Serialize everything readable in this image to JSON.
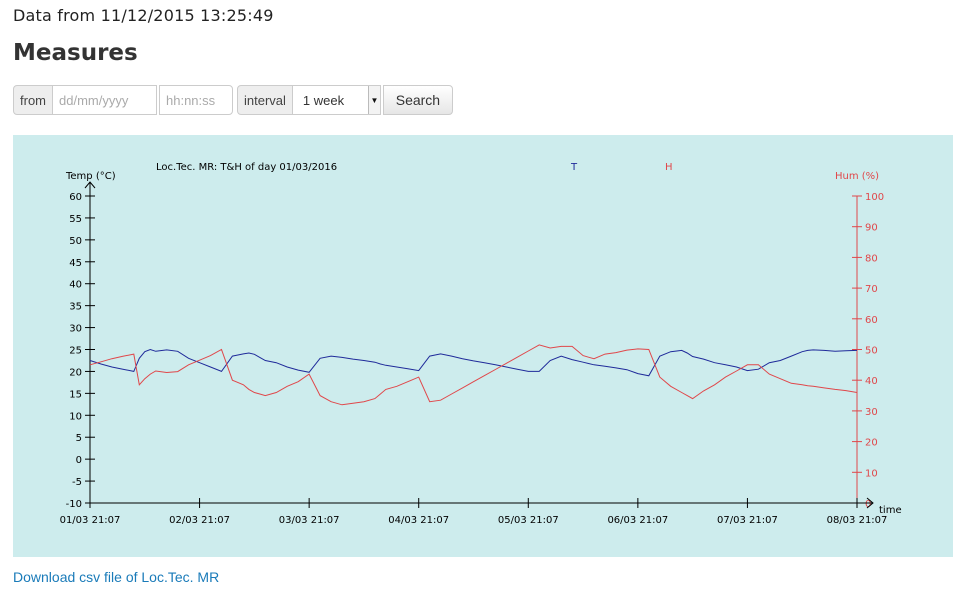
{
  "header": {
    "data_line": "Data from 11/12/2015 13:25:49"
  },
  "page_title": "Measures",
  "search_form": {
    "from_label": "from",
    "date_placeholder": "dd/mm/yyyy",
    "time_placeholder": "hh:nn:ss",
    "interval_label": "interval",
    "interval_value": "1 week",
    "search_button": "Search",
    "select_arrow_icon": "triangle-down-icon"
  },
  "download_link": "Download csv file of Loc.Tec. MR",
  "colors": {
    "chart_bg": "#cdeced",
    "temp": "#1f2a9a",
    "hum": "#e0474a",
    "axis": "#000000",
    "link": "#1a7bb9"
  },
  "chart_data": {
    "type": "line",
    "title": "Loc.Tec. MR: T&H of day 01/03/2016",
    "legend": [
      "T",
      "H"
    ],
    "legend_placement": "top",
    "xlabel": "time",
    "y_left_label": "Temp (°C)",
    "y_right_label": "Hum (%)",
    "ylim_left": [
      -10,
      60
    ],
    "ylim_right": [
      0,
      100
    ],
    "y_left_ticks": [
      "60",
      "55",
      "50",
      "45",
      "40",
      "35",
      "30",
      "25",
      "20",
      "15",
      "10",
      "5",
      "0",
      "-5",
      "-10"
    ],
    "y_right_ticks": [
      "100",
      "90",
      "80",
      "70",
      "60",
      "50",
      "40",
      "30",
      "20",
      "10",
      "0"
    ],
    "x_ticks": [
      "01/03 21:07",
      "02/03 21:07",
      "03/03 21:07",
      "04/03 21:07",
      "05/03 21:07",
      "06/03 21:07",
      "07/03 21:07",
      "08/03 21:07"
    ],
    "grid": false,
    "series": [
      {
        "name": "T",
        "axis": "left",
        "x": [
          0,
          0.1,
          0.2,
          0.3,
          0.4,
          0.45,
          0.5,
          0.55,
          0.6,
          0.7,
          0.8,
          0.9,
          1.0,
          1.1,
          1.2,
          1.3,
          1.4,
          1.45,
          1.5,
          1.55,
          1.6,
          1.7,
          1.8,
          1.9,
          2.0,
          2.1,
          2.2,
          2.3,
          2.4,
          2.5,
          2.6,
          2.65,
          2.7,
          2.8,
          2.9,
          3.0,
          3.1,
          3.2,
          3.3,
          3.4,
          3.5,
          3.6,
          3.7,
          3.8,
          3.9,
          4.0,
          4.1,
          4.2,
          4.3,
          4.4,
          4.5,
          4.55,
          4.6,
          4.7,
          4.8,
          4.9,
          5.0,
          5.1,
          5.2,
          5.3,
          5.4,
          5.45,
          5.5,
          5.6,
          5.7,
          5.8,
          5.9,
          6.0,
          6.1,
          6.2,
          6.3,
          6.4,
          6.5,
          6.55,
          6.6,
          6.7,
          6.8,
          6.9,
          7.0
        ],
        "y": [
          22.5,
          21.7,
          21.0,
          20.5,
          20.0,
          23.0,
          24.5,
          25.0,
          24.6,
          24.9,
          24.6,
          23.0,
          22.0,
          21.0,
          20.0,
          23.5,
          24.0,
          24.2,
          23.9,
          23.2,
          22.5,
          22.0,
          21.0,
          20.3,
          19.8,
          23.0,
          23.5,
          23.2,
          22.8,
          22.5,
          22.1,
          21.7,
          21.4,
          21.0,
          20.6,
          20.2,
          23.5,
          24.0,
          23.5,
          22.9,
          22.4,
          22.0,
          21.5,
          21.0,
          20.5,
          20.0,
          20.0,
          22.5,
          23.5,
          22.7,
          22.1,
          21.8,
          21.5,
          21.2,
          20.8,
          20.4,
          19.5,
          19.0,
          23.5,
          24.5,
          24.8,
          24.2,
          23.4,
          22.8,
          22.0,
          21.5,
          21.0,
          20.2,
          20.5,
          22.0,
          22.5,
          23.5,
          24.5,
          24.8,
          24.9,
          24.8,
          24.6,
          24.7,
          24.8
        ]
      },
      {
        "name": "H",
        "axis": "right",
        "x": [
          0,
          0.1,
          0.2,
          0.3,
          0.4,
          0.45,
          0.5,
          0.55,
          0.6,
          0.7,
          0.8,
          0.9,
          1.0,
          1.1,
          1.2,
          1.3,
          1.4,
          1.45,
          1.5,
          1.55,
          1.6,
          1.7,
          1.8,
          1.9,
          2.0,
          2.1,
          2.2,
          2.3,
          2.4,
          2.5,
          2.6,
          2.65,
          2.7,
          2.8,
          2.9,
          3.0,
          3.1,
          3.2,
          3.3,
          3.4,
          3.5,
          3.6,
          3.7,
          3.8,
          3.9,
          4.0,
          4.1,
          4.2,
          4.3,
          4.4,
          4.5,
          4.55,
          4.6,
          4.7,
          4.8,
          4.9,
          5.0,
          5.1,
          5.2,
          5.3,
          5.4,
          5.45,
          5.5,
          5.6,
          5.7,
          5.8,
          5.9,
          6.0,
          6.1,
          6.2,
          6.3,
          6.4,
          6.5,
          6.55,
          6.6,
          6.7,
          6.8,
          6.9,
          7.0
        ],
        "y": [
          45.0,
          46.0,
          47.0,
          47.8,
          48.5,
          38.5,
          40.5,
          42.0,
          43.0,
          42.5,
          42.8,
          45.0,
          46.5,
          48.0,
          50.0,
          40.0,
          38.5,
          37.0,
          36.0,
          35.5,
          35.0,
          36.0,
          38.0,
          39.5,
          42.0,
          35.0,
          33.0,
          32.0,
          32.5,
          33.0,
          34.0,
          35.5,
          37.0,
          38.0,
          39.5,
          41.0,
          33.0,
          33.5,
          35.5,
          37.5,
          39.5,
          41.5,
          43.5,
          45.5,
          47.5,
          49.5,
          51.5,
          50.5,
          51.0,
          51.0,
          48.0,
          47.5,
          47.0,
          48.5,
          49.0,
          49.8,
          50.2,
          50.0,
          41.0,
          38.0,
          36.0,
          35.0,
          34.0,
          36.5,
          38.5,
          41.0,
          43.0,
          45.0,
          45.0,
          42.0,
          40.5,
          39.0,
          38.5,
          38.2,
          38.0,
          37.5,
          37.0,
          36.6,
          36.0
        ]
      }
    ]
  }
}
